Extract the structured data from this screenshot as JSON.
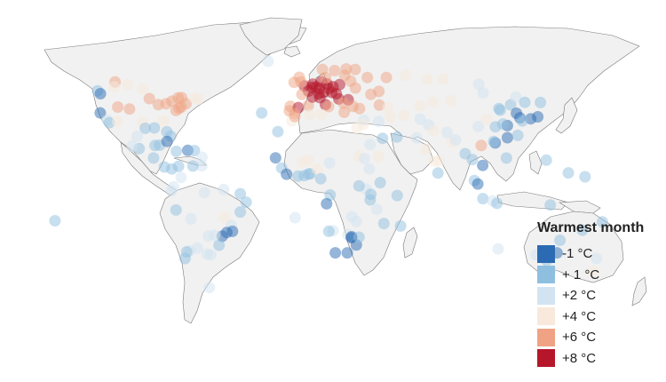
{
  "legend": {
    "title": "Warmest month",
    "items": [
      {
        "label": "-1 °C",
        "color": "#2c6bb3",
        "key": "c-1"
      },
      {
        "label": "+ 1 °C",
        "color": "#8fbfdf",
        "key": "c1"
      },
      {
        "label": "+2 °C",
        "color": "#d2e4f1",
        "key": "c2"
      },
      {
        "label": "+4 °C",
        "color": "#f8e9dc",
        "key": "c4"
      },
      {
        "label": "+6 °C",
        "color": "#f0a384",
        "key": "c6"
      },
      {
        "label": "+8 °C",
        "color": "#b5162a",
        "key": "c8"
      }
    ]
  },
  "cities": [
    {
      "lon": -124,
      "lat": 49,
      "t": "c1"
    },
    {
      "lon": -122.3,
      "lat": 47.5,
      "t": "c-1"
    },
    {
      "lon": -122.4,
      "lat": 37.7,
      "t": "c-1"
    },
    {
      "lon": -118.2,
      "lat": 34,
      "t": "c2"
    },
    {
      "lon": -117,
      "lat": 32.7,
      "t": "c1"
    },
    {
      "lon": -112,
      "lat": 33.4,
      "t": "c4"
    },
    {
      "lon": -104.9,
      "lat": 39.7,
      "t": "c6"
    },
    {
      "lon": -111.9,
      "lat": 40.7,
      "t": "c6"
    },
    {
      "lon": -97,
      "lat": 32.8,
      "t": "c4"
    },
    {
      "lon": -95.4,
      "lat": 29.8,
      "t": "c1"
    },
    {
      "lon": -90,
      "lat": 30,
      "t": "c1"
    },
    {
      "lon": -93,
      "lat": 45,
      "t": "c6"
    },
    {
      "lon": -87.6,
      "lat": 41.9,
      "t": "c6"
    },
    {
      "lon": -83,
      "lat": 42.3,
      "t": "c6"
    },
    {
      "lon": -79.4,
      "lat": 43.7,
      "t": "c6"
    },
    {
      "lon": -75.7,
      "lat": 45.4,
      "t": "c6"
    },
    {
      "lon": -73.6,
      "lat": 45.5,
      "t": "c6"
    },
    {
      "lon": -71,
      "lat": 42.4,
      "t": "c6"
    },
    {
      "lon": -74,
      "lat": 40.7,
      "t": "c6"
    },
    {
      "lon": -77,
      "lat": 38.9,
      "t": "c6"
    },
    {
      "lon": -75.2,
      "lat": 40,
      "t": "c6"
    },
    {
      "lon": -84.4,
      "lat": 33.7,
      "t": "c4"
    },
    {
      "lon": -80.2,
      "lat": 25.8,
      "t": "c1"
    },
    {
      "lon": -82.5,
      "lat": 28,
      "t": "c1"
    },
    {
      "lon": -66,
      "lat": 45.3,
      "t": "c4"
    },
    {
      "lon": -63.6,
      "lat": 44.6,
      "t": "c4"
    },
    {
      "lon": -106,
      "lat": 52,
      "t": "c4"
    },
    {
      "lon": -113.5,
      "lat": 53.5,
      "t": "c6"
    },
    {
      "lon": -114,
      "lat": 51,
      "t": "c4"
    },
    {
      "lon": -97.1,
      "lat": 49.9,
      "t": "c4"
    },
    {
      "lon": -99.1,
      "lat": 19.4,
      "t": "c1"
    },
    {
      "lon": -103.3,
      "lat": 20.7,
      "t": "c2"
    },
    {
      "lon": -100.3,
      "lat": 25.7,
      "t": "c2"
    },
    {
      "lon": -89.6,
      "lat": 21,
      "t": "c1"
    },
    {
      "lon": -86.8,
      "lat": 21.2,
      "t": "c1"
    },
    {
      "lon": -82.4,
      "lat": 23.1,
      "t": "c-1"
    },
    {
      "lon": -90.5,
      "lat": 14.6,
      "t": "c1"
    },
    {
      "lon": -84,
      "lat": 10,
      "t": "c1"
    },
    {
      "lon": -79.5,
      "lat": 9,
      "t": "c1"
    },
    {
      "lon": -76.8,
      "lat": 18,
      "t": "c1"
    },
    {
      "lon": -70,
      "lat": 18.5,
      "t": "c-1"
    },
    {
      "lon": -66,
      "lat": 18.4,
      "t": "c1"
    },
    {
      "lon": -61.5,
      "lat": 15,
      "t": "c2"
    },
    {
      "lon": -61.5,
      "lat": 10.6,
      "t": "c2"
    },
    {
      "lon": -74,
      "lat": 4.7,
      "t": "c2"
    },
    {
      "lon": -75.5,
      "lat": 10.4,
      "t": "c1"
    },
    {
      "lon": -66.9,
      "lat": 10.5,
      "t": "c1"
    },
    {
      "lon": -78.5,
      "lat": -0.2,
      "t": "c2"
    },
    {
      "lon": -79.9,
      "lat": -2.2,
      "t": "c2"
    },
    {
      "lon": -77,
      "lat": -12,
      "t": "c1"
    },
    {
      "lon": -60,
      "lat": -3.1,
      "t": "c2"
    },
    {
      "lon": -48.5,
      "lat": -1.5,
      "t": "c2"
    },
    {
      "lon": -38.5,
      "lat": -3.7,
      "t": "c1"
    },
    {
      "lon": -35,
      "lat": -8,
      "t": "c1"
    },
    {
      "lon": -38.5,
      "lat": -13,
      "t": "c1"
    },
    {
      "lon": -47.9,
      "lat": -15.8,
      "t": "c4"
    },
    {
      "lon": -43.9,
      "lat": -19.9,
      "t": "c2"
    },
    {
      "lon": -43.2,
      "lat": -22.9,
      "t": "c-1"
    },
    {
      "lon": -46.6,
      "lat": -23.5,
      "t": "c-1"
    },
    {
      "lon": -49.3,
      "lat": -25.4,
      "t": "c-1"
    },
    {
      "lon": -51.2,
      "lat": -30,
      "t": "c1"
    },
    {
      "lon": -54,
      "lat": -25,
      "t": "c2"
    },
    {
      "lon": -57.6,
      "lat": -25.3,
      "t": "c2"
    },
    {
      "lon": -56.2,
      "lat": -34.9,
      "t": "c2"
    },
    {
      "lon": -58.4,
      "lat": -34.6,
      "t": "c2"
    },
    {
      "lon": -64.2,
      "lat": -31.4,
      "t": "c2"
    },
    {
      "lon": -68.8,
      "lat": -32.9,
      "t": "c2"
    },
    {
      "lon": -70.6,
      "lat": -33.4,
      "t": "c1"
    },
    {
      "lon": -71.6,
      "lat": -36.8,
      "t": "c1"
    },
    {
      "lon": -68.1,
      "lat": -16.5,
      "t": "c2"
    },
    {
      "lon": -57,
      "lat": -51.7,
      "t": "c2"
    },
    {
      "lon": -149.5,
      "lat": -17.5,
      "t": "c1"
    },
    {
      "lon": -21.9,
      "lat": 64.1,
      "t": "c2"
    },
    {
      "lon": -16,
      "lat": 28.1,
      "t": "c1"
    },
    {
      "lon": -25.7,
      "lat": 37.7,
      "t": "c1"
    },
    {
      "lon": -9.1,
      "lat": 38.7,
      "t": "c6"
    },
    {
      "lon": -8.6,
      "lat": 41.1,
      "t": "c6"
    },
    {
      "lon": -3.7,
      "lat": 40.4,
      "t": "c8"
    },
    {
      "lon": -6,
      "lat": 37.4,
      "t": "c6"
    },
    {
      "lon": 2.2,
      "lat": 41.4,
      "t": "c6"
    },
    {
      "lon": -0.1,
      "lat": 51.5,
      "t": "c8"
    },
    {
      "lon": -2.2,
      "lat": 53.5,
      "t": "c6"
    },
    {
      "lon": -3.2,
      "lat": 55.9,
      "t": "c6"
    },
    {
      "lon": -6.3,
      "lat": 53.3,
      "t": "c6"
    },
    {
      "lon": 2.35,
      "lat": 48.85,
      "t": "c8"
    },
    {
      "lon": 4.8,
      "lat": 45.8,
      "t": "c8"
    },
    {
      "lon": -1.6,
      "lat": 47.2,
      "t": "c6"
    },
    {
      "lon": 4.9,
      "lat": 52.4,
      "t": "c8"
    },
    {
      "lon": 4.4,
      "lat": 50.8,
      "t": "c8"
    },
    {
      "lon": 6.9,
      "lat": 50.9,
      "t": "c8"
    },
    {
      "lon": 8.7,
      "lat": 50.1,
      "t": "c8"
    },
    {
      "lon": 11.6,
      "lat": 48.1,
      "t": "c8"
    },
    {
      "lon": 13.4,
      "lat": 52.5,
      "t": "c8"
    },
    {
      "lon": 10,
      "lat": 53.6,
      "t": "c8"
    },
    {
      "lon": 8.5,
      "lat": 47.4,
      "t": "c8"
    },
    {
      "lon": 9.2,
      "lat": 45.5,
      "t": "c8"
    },
    {
      "lon": 12.5,
      "lat": 41.9,
      "t": "c8"
    },
    {
      "lon": 14.3,
      "lat": 40.9,
      "t": "c6"
    },
    {
      "lon": 16.4,
      "lat": 48.2,
      "t": "c8"
    },
    {
      "lon": 14.4,
      "lat": 50.1,
      "t": "c8"
    },
    {
      "lon": 19,
      "lat": 47.5,
      "t": "c8"
    },
    {
      "lon": 21,
      "lat": 52.2,
      "t": "c8"
    },
    {
      "lon": 17,
      "lat": 51.1,
      "t": "c8"
    },
    {
      "lon": 20.5,
      "lat": 44.8,
      "t": "c8"
    },
    {
      "lon": 26.1,
      "lat": 44.4,
      "t": "c8"
    },
    {
      "lon": 23.3,
      "lat": 42.7,
      "t": "c6"
    },
    {
      "lon": 23.7,
      "lat": 38,
      "t": "c6"
    },
    {
      "lon": 29,
      "lat": 41,
      "t": "c6"
    },
    {
      "lon": 32.9,
      "lat": 39.9,
      "t": "c6"
    },
    {
      "lon": 30.5,
      "lat": 50.4,
      "t": "c6"
    },
    {
      "lon": 27.6,
      "lat": 53.9,
      "t": "c6"
    },
    {
      "lon": 37.6,
      "lat": 55.8,
      "t": "c6"
    },
    {
      "lon": 30.3,
      "lat": 59.9,
      "t": "c6"
    },
    {
      "lon": 24.9,
      "lat": 60.2,
      "t": "c6"
    },
    {
      "lon": 18,
      "lat": 59.3,
      "t": "c6"
    },
    {
      "lon": 10.7,
      "lat": 59.9,
      "t": "c6"
    },
    {
      "lon": 12.6,
      "lat": 55.7,
      "t": "c6"
    },
    {
      "lon": 24.1,
      "lat": 56.9,
      "t": "c6"
    },
    {
      "lon": 49,
      "lat": 55.8,
      "t": "c6"
    },
    {
      "lon": 44.5,
      "lat": 48.7,
      "t": "c6"
    },
    {
      "lon": 39.7,
      "lat": 47.2,
      "t": "c6"
    },
    {
      "lon": 60.6,
      "lat": 56.8,
      "t": "c4"
    },
    {
      "lon": 73.4,
      "lat": 55,
      "t": "c4"
    },
    {
      "lon": 82.9,
      "lat": 55,
      "t": "c4"
    },
    {
      "lon": 44.8,
      "lat": 41.7,
      "t": "c6"
    },
    {
      "lon": 49.9,
      "lat": 40.4,
      "t": "c4"
    },
    {
      "lon": 35.5,
      "lat": 33.9,
      "t": "c2"
    },
    {
      "lon": 35.2,
      "lat": 31.8,
      "t": "c4"
    },
    {
      "lon": 31.2,
      "lat": 30,
      "t": "c4"
    },
    {
      "lon": 44.4,
      "lat": 33.3,
      "t": "c2"
    },
    {
      "lon": 51.4,
      "lat": 35.7,
      "t": "c4"
    },
    {
      "lon": 59.6,
      "lat": 36.3,
      "t": "c4"
    },
    {
      "lon": 46.7,
      "lat": 24.7,
      "t": "c1"
    },
    {
      "lon": 55.3,
      "lat": 25.3,
      "t": "c1"
    },
    {
      "lon": 39.2,
      "lat": 21.5,
      "t": "c2"
    },
    {
      "lon": 44.2,
      "lat": 15.4,
      "t": "c4"
    },
    {
      "lon": 69.2,
      "lat": 41.3,
      "t": "c4"
    },
    {
      "lon": 76.9,
      "lat": 43.2,
      "t": "c4"
    },
    {
      "lon": 69.2,
      "lat": 34.5,
      "t": "c2"
    },
    {
      "lon": 67,
      "lat": 24.9,
      "t": "c2"
    },
    {
      "lon": 74.3,
      "lat": 31.5,
      "t": "c2"
    },
    {
      "lon": 77.2,
      "lat": 28.6,
      "t": "c4"
    },
    {
      "lon": 72.9,
      "lat": 19.1,
      "t": "c4"
    },
    {
      "lon": 80.3,
      "lat": 13.1,
      "t": "c4"
    },
    {
      "lon": 77.6,
      "lat": 13,
      "t": "c4"
    },
    {
      "lon": 88.4,
      "lat": 22.6,
      "t": "c4"
    },
    {
      "lon": 90.4,
      "lat": 23.8,
      "t": "c2"
    },
    {
      "lon": 79.9,
      "lat": 6.9,
      "t": "c1"
    },
    {
      "lon": 85.3,
      "lat": 27.7,
      "t": "c2"
    },
    {
      "lon": 96.2,
      "lat": 16.8,
      "t": "c1"
    },
    {
      "lon": 100.5,
      "lat": 13.8,
      "t": "c1"
    },
    {
      "lon": 106.7,
      "lat": 10.8,
      "t": "c-1"
    },
    {
      "lon": 105.8,
      "lat": 21,
      "t": "c6"
    },
    {
      "lon": 101.7,
      "lat": 3.1,
      "t": "c1"
    },
    {
      "lon": 103.8,
      "lat": 1.3,
      "t": "c-1"
    },
    {
      "lon": 106.8,
      "lat": -6.2,
      "t": "c1"
    },
    {
      "lon": 112.7,
      "lat": -7.3,
      "t": "c2"
    },
    {
      "lon": 115.2,
      "lat": -8.6,
      "t": "c1"
    },
    {
      "lon": 120.9,
      "lat": 14.6,
      "t": "c1"
    },
    {
      "lon": 121.5,
      "lat": 25,
      "t": "c-1"
    },
    {
      "lon": 114.2,
      "lat": 22.3,
      "t": "c-1"
    },
    {
      "lon": 113.3,
      "lat": 23.1,
      "t": "c1"
    },
    {
      "lon": 121.5,
      "lat": 31.2,
      "t": "c-1"
    },
    {
      "lon": 118.8,
      "lat": 32,
      "t": "c1"
    },
    {
      "lon": 116.4,
      "lat": 39.9,
      "t": "c1"
    },
    {
      "lon": 117.2,
      "lat": 39.1,
      "t": "c1"
    },
    {
      "lon": 104.1,
      "lat": 30.7,
      "t": "c2"
    },
    {
      "lon": 108.9,
      "lat": 34.3,
      "t": "c4"
    },
    {
      "lon": 114.3,
      "lat": 30.6,
      "t": "c1"
    },
    {
      "lon": 123.4,
      "lat": 41.8,
      "t": "c1"
    },
    {
      "lon": 126.6,
      "lat": 45.8,
      "t": "c2"
    },
    {
      "lon": 126.9,
      "lat": 37.5,
      "t": "c-1"
    },
    {
      "lon": 129,
      "lat": 35.2,
      "t": "c-1"
    },
    {
      "lon": 135.5,
      "lat": 34.7,
      "t": "c-1"
    },
    {
      "lon": 139.7,
      "lat": 35.7,
      "t": "c-1"
    },
    {
      "lon": 141.3,
      "lat": 43,
      "t": "c1"
    },
    {
      "lon": 130.4,
      "lat": 33.6,
      "t": "c1"
    },
    {
      "lon": 127.7,
      "lat": 26.2,
      "t": "c1"
    },
    {
      "lon": 131.9,
      "lat": 43.1,
      "t": "c1"
    },
    {
      "lon": 106.9,
      "lat": 47.9,
      "t": "c2"
    },
    {
      "lon": 104.3,
      "lat": 52.3,
      "t": "c2"
    },
    {
      "lon": 87.6,
      "lat": 43.8,
      "t": "c4"
    },
    {
      "lon": 144.8,
      "lat": 13.5,
      "t": "c1"
    },
    {
      "lon": 151.2,
      "lat": -33.9,
      "t": "c-1"
    },
    {
      "lon": 145,
      "lat": -37.8,
      "t": "c1"
    },
    {
      "lon": 153,
      "lat": -27.5,
      "t": "c1"
    },
    {
      "lon": 138.6,
      "lat": -34.9,
      "t": "c2"
    },
    {
      "lon": 115.9,
      "lat": -31.9,
      "t": "c2"
    },
    {
      "lon": 147.3,
      "lat": -42.9,
      "t": "c2"
    },
    {
      "lon": 174.8,
      "lat": -36.8,
      "t": "c2"
    },
    {
      "lon": 172.6,
      "lat": -43.5,
      "t": "c4"
    },
    {
      "lon": 178.4,
      "lat": -18.1,
      "t": "c1"
    },
    {
      "lon": 166.4,
      "lat": -22.3,
      "t": "c1"
    },
    {
      "lon": 147.2,
      "lat": -9.4,
      "t": "c1"
    },
    {
      "lon": 158,
      "lat": 7,
      "t": "c1"
    },
    {
      "lon": 168,
      "lat": 5,
      "t": "c1"
    },
    {
      "lon": -17.4,
      "lat": 14.7,
      "t": "c-1"
    },
    {
      "lon": -13.7,
      "lat": 9.5,
      "t": "c1"
    },
    {
      "lon": -10.8,
      "lat": 6.3,
      "t": "c-1"
    },
    {
      "lon": -4,
      "lat": 5.3,
      "t": "c1"
    },
    {
      "lon": -0.2,
      "lat": 5.6,
      "t": "c1"
    },
    {
      "lon": 2.4,
      "lat": 6.4,
      "t": "c1"
    },
    {
      "lon": 3.4,
      "lat": 6.5,
      "t": "c1"
    },
    {
      "lon": 7.5,
      "lat": 9,
      "t": "c4"
    },
    {
      "lon": -7.6,
      "lat": 33.6,
      "t": "c4"
    },
    {
      "lon": -5.8,
      "lat": 35.8,
      "t": "c6"
    },
    {
      "lon": 3,
      "lat": 36.8,
      "t": "c4"
    },
    {
      "lon": 10.2,
      "lat": 36.8,
      "t": "c4"
    },
    {
      "lon": -1.5,
      "lat": 12.4,
      "t": "c4"
    },
    {
      "lon": 2.1,
      "lat": 13.5,
      "t": "c4"
    },
    {
      "lon": 15,
      "lat": 12.1,
      "t": "c2"
    },
    {
      "lon": 32.5,
      "lat": 15.6,
      "t": "c4"
    },
    {
      "lon": 38.7,
      "lat": 9,
      "t": "c2"
    },
    {
      "lon": 45.3,
      "lat": 2,
      "t": "c1"
    },
    {
      "lon": 36.8,
      "lat": -1.3,
      "t": "c2"
    },
    {
      "lon": 39.7,
      "lat": -4,
      "t": "c1"
    },
    {
      "lon": 32.6,
      "lat": 0.3,
      "t": "c1"
    },
    {
      "lon": 39.3,
      "lat": -6.8,
      "t": "c1"
    },
    {
      "lon": 15.3,
      "lat": -4.3,
      "t": "c1"
    },
    {
      "lon": 13.2,
      "lat": -8.8,
      "t": "c-1"
    },
    {
      "lon": 9.7,
      "lat": 4,
      "t": "c1"
    },
    {
      "lon": 28.3,
      "lat": -15.4,
      "t": "c2"
    },
    {
      "lon": 31,
      "lat": -17.8,
      "t": "c2"
    },
    {
      "lon": 17.1,
      "lat": -22.6,
      "t": "c2"
    },
    {
      "lon": 14.5,
      "lat": -22.9,
      "t": "c1"
    },
    {
      "lon": 25.9,
      "lat": -24.6,
      "t": "c2"
    },
    {
      "lon": 28,
      "lat": -26.2,
      "t": "c-1"
    },
    {
      "lon": 28.2,
      "lat": -25.7,
      "t": "c-1"
    },
    {
      "lon": 31,
      "lat": -29.9,
      "t": "c-1"
    },
    {
      "lon": 18.4,
      "lat": -33.9,
      "t": "c-1"
    },
    {
      "lon": 25.6,
      "lat": -33.9,
      "t": "c-1"
    },
    {
      "lon": 32.6,
      "lat": -25.9,
      "t": "c1"
    },
    {
      "lon": 47.5,
      "lat": -18.9,
      "t": "c1"
    },
    {
      "lon": 57.5,
      "lat": -20.2,
      "t": "c1"
    },
    {
      "lon": 55.5,
      "lat": -4.6,
      "t": "c1"
    },
    {
      "lon": 43.3,
      "lat": -11.7,
      "t": "c2"
    },
    {
      "lon": -5.7,
      "lat": -15.9,
      "t": "c2"
    },
    {
      "lon": 35.9,
      "lat": 14.3,
      "t": "c2"
    }
  ]
}
